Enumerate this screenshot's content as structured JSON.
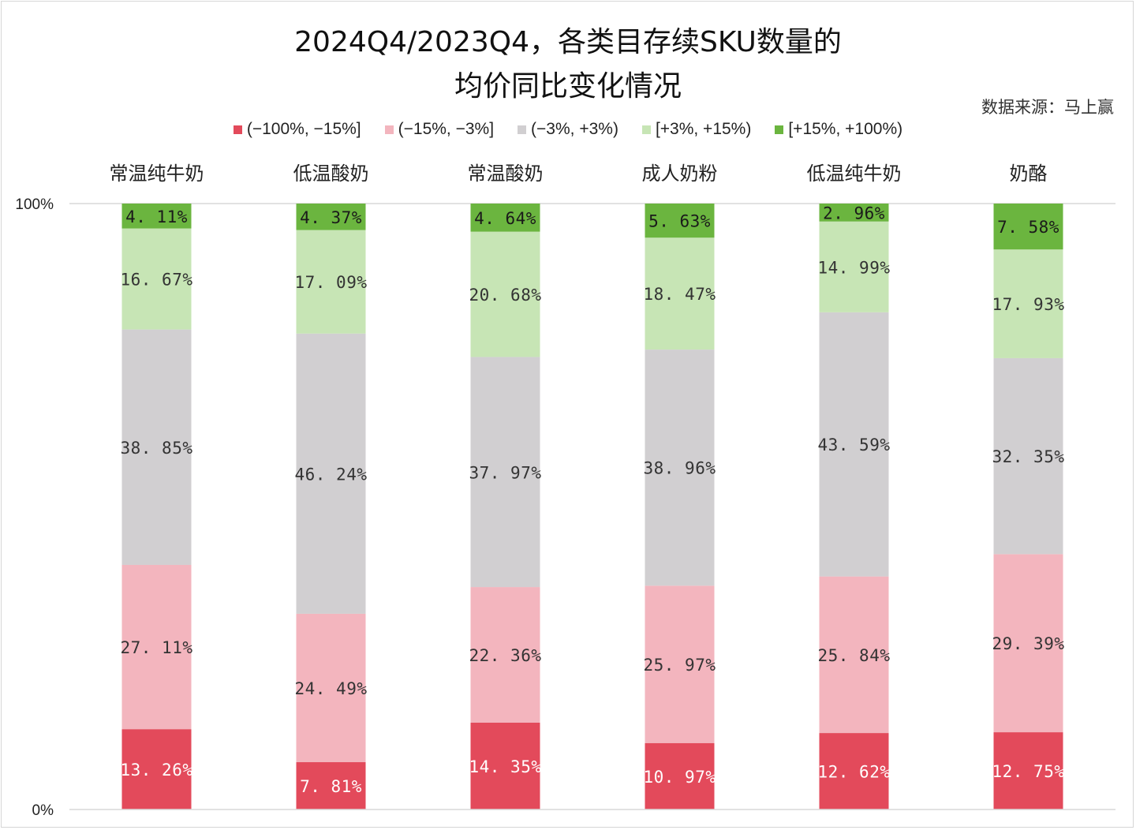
{
  "title_line1": "2024Q4/2023Q4，各类目存续SKU数量的",
  "title_line2": "均价同比变化情况",
  "source": "数据来源：马上赢",
  "chart_data": {
    "type": "bar",
    "stacked": true,
    "percent": true,
    "title": "2024Q4/2023Q4，各类目存续SKU数量的均价同比变化情况",
    "categories": [
      "常温纯牛奶",
      "低温酸奶",
      "常温酸奶",
      "成人奶粉",
      "低温纯牛奶",
      "奶酪"
    ],
    "series": [
      {
        "name": "(−100%, −15%]",
        "color": "#e34a5b",
        "label_color": "#ffffff",
        "values": [
          13.26,
          7.81,
          14.35,
          10.97,
          12.62,
          12.75
        ]
      },
      {
        "name": "(−15%, −3%]",
        "color": "#f3b5be",
        "label_color": "#333333",
        "values": [
          27.11,
          24.49,
          22.36,
          25.97,
          25.84,
          29.39
        ]
      },
      {
        "name": "(−3%, +3%)",
        "color": "#d1cfd1",
        "label_color": "#333333",
        "values": [
          38.85,
          46.24,
          37.97,
          38.96,
          43.59,
          32.35
        ]
      },
      {
        "name": "[+3%, +15%)",
        "color": "#c7e5b5",
        "label_color": "#333333",
        "values": [
          16.67,
          17.09,
          20.68,
          18.47,
          14.99,
          17.93
        ]
      },
      {
        "name": "[+15%, +100%)",
        "color": "#6bb53f",
        "label_color": "#1a1a1a",
        "values": [
          4.11,
          4.37,
          4.64,
          5.63,
          2.96,
          7.58
        ]
      }
    ],
    "y_ticks": [
      "0%",
      "100%"
    ],
    "ylim": [
      0,
      100
    ],
    "legend_position": "top",
    "category_axis_position": "top"
  }
}
